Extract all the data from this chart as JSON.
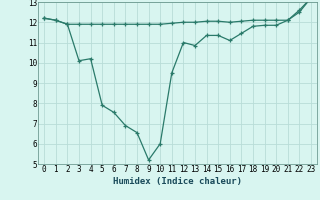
{
  "xlabel": "Humidex (Indice chaleur)",
  "x_values": [
    0,
    1,
    2,
    3,
    4,
    5,
    6,
    7,
    8,
    9,
    10,
    11,
    12,
    13,
    14,
    15,
    16,
    17,
    18,
    19,
    20,
    21,
    22,
    23
  ],
  "line1_y": [
    12.2,
    12.1,
    11.9,
    10.1,
    10.2,
    7.9,
    7.55,
    6.9,
    6.55,
    5.2,
    6.0,
    9.5,
    11.0,
    10.85,
    11.35,
    11.35,
    11.1,
    11.45,
    11.8,
    11.85,
    11.85,
    12.1,
    12.6,
    13.2
  ],
  "line2_y": [
    12.2,
    12.1,
    11.9,
    11.9,
    11.9,
    11.9,
    11.9,
    11.9,
    11.9,
    11.9,
    11.9,
    11.95,
    12.0,
    12.0,
    12.05,
    12.05,
    12.0,
    12.05,
    12.1,
    12.1,
    12.1,
    12.1,
    12.5,
    13.2
  ],
  "line_color": "#2a7a6a",
  "bg_color": "#d8f5f0",
  "grid_color": "#b8ddd8",
  "ylim": [
    5,
    13
  ],
  "xlim": [
    -0.5,
    23.5
  ],
  "yticks": [
    5,
    6,
    7,
    8,
    9,
    10,
    11,
    12,
    13
  ],
  "xticks": [
    0,
    1,
    2,
    3,
    4,
    5,
    6,
    7,
    8,
    9,
    10,
    11,
    12,
    13,
    14,
    15,
    16,
    17,
    18,
    19,
    20,
    21,
    22,
    23
  ],
  "tick_fontsize": 5.5,
  "label_fontsize": 6.5
}
